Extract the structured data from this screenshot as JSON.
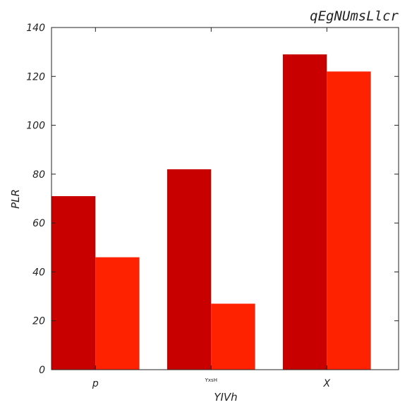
{
  "chart_data": {
    "type": "bar",
    "title": "qEgNUmsLlcr",
    "xlabel": "YIVh",
    "ylabel": "PLR",
    "categories": [
      "p",
      "YxsH",
      "X"
    ],
    "series": [
      {
        "values": [
          71,
          82,
          129
        ],
        "color": "#c80000"
      },
      {
        "values": [
          46,
          27,
          122
        ],
        "color": "#ff2200"
      }
    ],
    "ylim": [
      0,
      140
    ],
    "yticks": [
      0,
      20,
      40,
      60,
      80,
      100,
      120,
      140
    ],
    "grid": false,
    "legend": "none"
  }
}
